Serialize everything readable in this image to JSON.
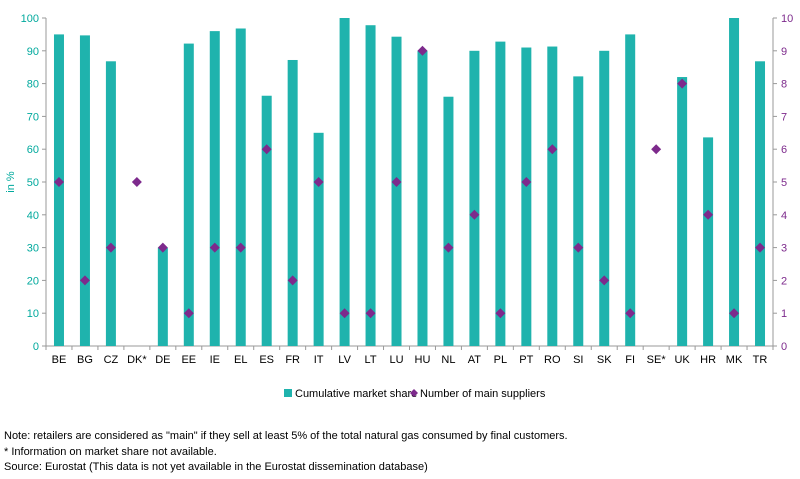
{
  "chart_data": {
    "type": "bar",
    "categories": [
      "BE",
      "BG",
      "CZ",
      "DK*",
      "DE",
      "EE",
      "IE",
      "EL",
      "ES",
      "FR",
      "IT",
      "LV",
      "LT",
      "LU",
      "HU",
      "NL",
      "AT",
      "PL",
      "PT",
      "RO",
      "SI",
      "SK",
      "FI",
      "SE*",
      "UK",
      "HR",
      "MK",
      "TR"
    ],
    "series": [
      {
        "name": "Cumulative market share",
        "type": "bar",
        "axis": "left",
        "color": "#1fb3ad",
        "values": [
          95,
          94.7,
          86.8,
          null,
          30,
          92.2,
          96,
          96.8,
          76.3,
          87.2,
          65,
          100,
          97.8,
          94.3,
          90,
          76,
          90,
          92.8,
          91,
          91.3,
          82.2,
          90,
          95,
          null,
          82,
          63.6,
          100,
          86.8
        ]
      },
      {
        "name": "Number of main suppliers",
        "type": "scatter",
        "axis": "right",
        "color": "#7d2a8c",
        "values": [
          5,
          2,
          3,
          5,
          3,
          1,
          3,
          3,
          6,
          2,
          5,
          1,
          1,
          5,
          9,
          3,
          4,
          1,
          5,
          6,
          3,
          2,
          1,
          6,
          8,
          4,
          1,
          3
        ]
      }
    ],
    "ylabel": "in %",
    "ylim": [
      0,
      100
    ],
    "yticks": [
      "0",
      "10",
      "20",
      "30",
      "40",
      "50",
      "60",
      "70",
      "80",
      "90",
      "100"
    ],
    "y2lim": [
      0,
      10
    ],
    "y2ticks": [
      "0",
      "1",
      "2",
      "3",
      "4",
      "5",
      "6",
      "7",
      "8",
      "9",
      "10"
    ],
    "grid": false,
    "legend_position": "bottom-center"
  },
  "notes": {
    "line1": "Note: retailers are considered as \"main\" if they sell at least 5% of the total natural gas consumed by final customers.",
    "line2": "* Information on market share not available.",
    "source": "Source: Eurostat (This data is not yet available in the Eurostat dissemination database)"
  }
}
